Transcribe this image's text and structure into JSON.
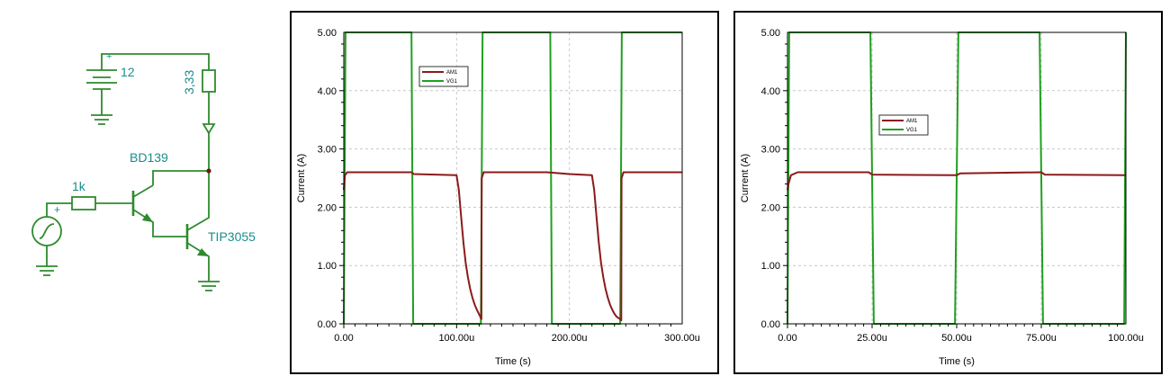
{
  "schematic": {
    "battery_value": "12",
    "battery_plus": "+",
    "source_plus": "+",
    "resistor_load_value": "3,33",
    "resistor_base_value": "1k",
    "transistor1": "BD139",
    "transistor2": "TIP3055"
  },
  "colors": {
    "wire": "#2e8b2e",
    "label": "#1a8c8c",
    "am1": "#8b1a1a",
    "vg1": "#1fa01f",
    "grid": "#c8c8c8"
  },
  "chart_data": [
    {
      "type": "line",
      "xlabel": "Time (s)",
      "ylabel": "Current (A)",
      "xlim": [
        0,
        300
      ],
      "ylim": [
        0,
        5
      ],
      "x_ticks": [
        "0.00",
        "100.00u",
        "200.00u",
        "300.00u"
      ],
      "y_ticks": [
        "0.00",
        "1.00",
        "2.00",
        "3.00",
        "4.00",
        "5.00"
      ],
      "grid": true,
      "legend": "top-left",
      "series": [
        {
          "name": "AM1",
          "x": [
            0,
            0.3,
            1,
            3,
            60,
            62,
            100,
            102,
            104,
            106,
            108,
            110,
            112,
            114,
            116,
            118,
            120,
            121,
            122,
            122.2,
            124,
            130,
            150,
            180,
            200,
            220,
            222,
            224,
            226,
            228,
            230,
            232,
            234,
            236,
            238,
            240,
            242,
            245,
            246,
            246.2,
            248,
            260,
            300
          ],
          "y": [
            2.3,
            2.4,
            2.55,
            2.6,
            2.6,
            2.57,
            2.55,
            2.3,
            1.85,
            1.4,
            1.05,
            0.8,
            0.6,
            0.45,
            0.33,
            0.24,
            0.16,
            0.12,
            0.08,
            2.5,
            2.6,
            2.6,
            2.6,
            2.6,
            2.57,
            2.55,
            2.3,
            1.85,
            1.4,
            1.05,
            0.8,
            0.6,
            0.45,
            0.33,
            0.24,
            0.17,
            0.12,
            0.08,
            0.06,
            2.5,
            2.6,
            2.6,
            2.6
          ]
        },
        {
          "name": "VG1",
          "x": [
            0,
            1.5,
            60,
            61.5,
            121.5,
            123,
            183,
            184.5,
            245,
            246.5,
            300
          ],
          "y": [
            0,
            5,
            5,
            0,
            0,
            5,
            5,
            0,
            0,
            5,
            5
          ]
        }
      ]
    },
    {
      "type": "line",
      "xlabel": "Time (s)",
      "ylabel": "Current (A)",
      "xlim": [
        0,
        100
      ],
      "ylim": [
        0,
        5
      ],
      "x_ticks": [
        "0.00",
        "25.00u",
        "50.00u",
        "75.00u",
        "100.00u"
      ],
      "y_ticks": [
        "0.00",
        "1.00",
        "2.00",
        "3.00",
        "4.00",
        "5.00"
      ],
      "grid": true,
      "legend": "top-left",
      "series": [
        {
          "name": "AM1",
          "x": [
            0,
            0.3,
            1,
            3,
            24,
            25,
            50,
            51,
            75,
            76,
            100
          ],
          "y": [
            2.3,
            2.4,
            2.55,
            2.6,
            2.6,
            2.56,
            2.55,
            2.58,
            2.6,
            2.56,
            2.55
          ]
        },
        {
          "name": "VG1",
          "x": [
            0,
            0.5,
            24.5,
            25.5,
            49.5,
            50.5,
            74.5,
            75.5,
            99.5,
            100
          ],
          "y": [
            0,
            5,
            5,
            0,
            0,
            5,
            5,
            0,
            0,
            5
          ]
        }
      ]
    }
  ]
}
